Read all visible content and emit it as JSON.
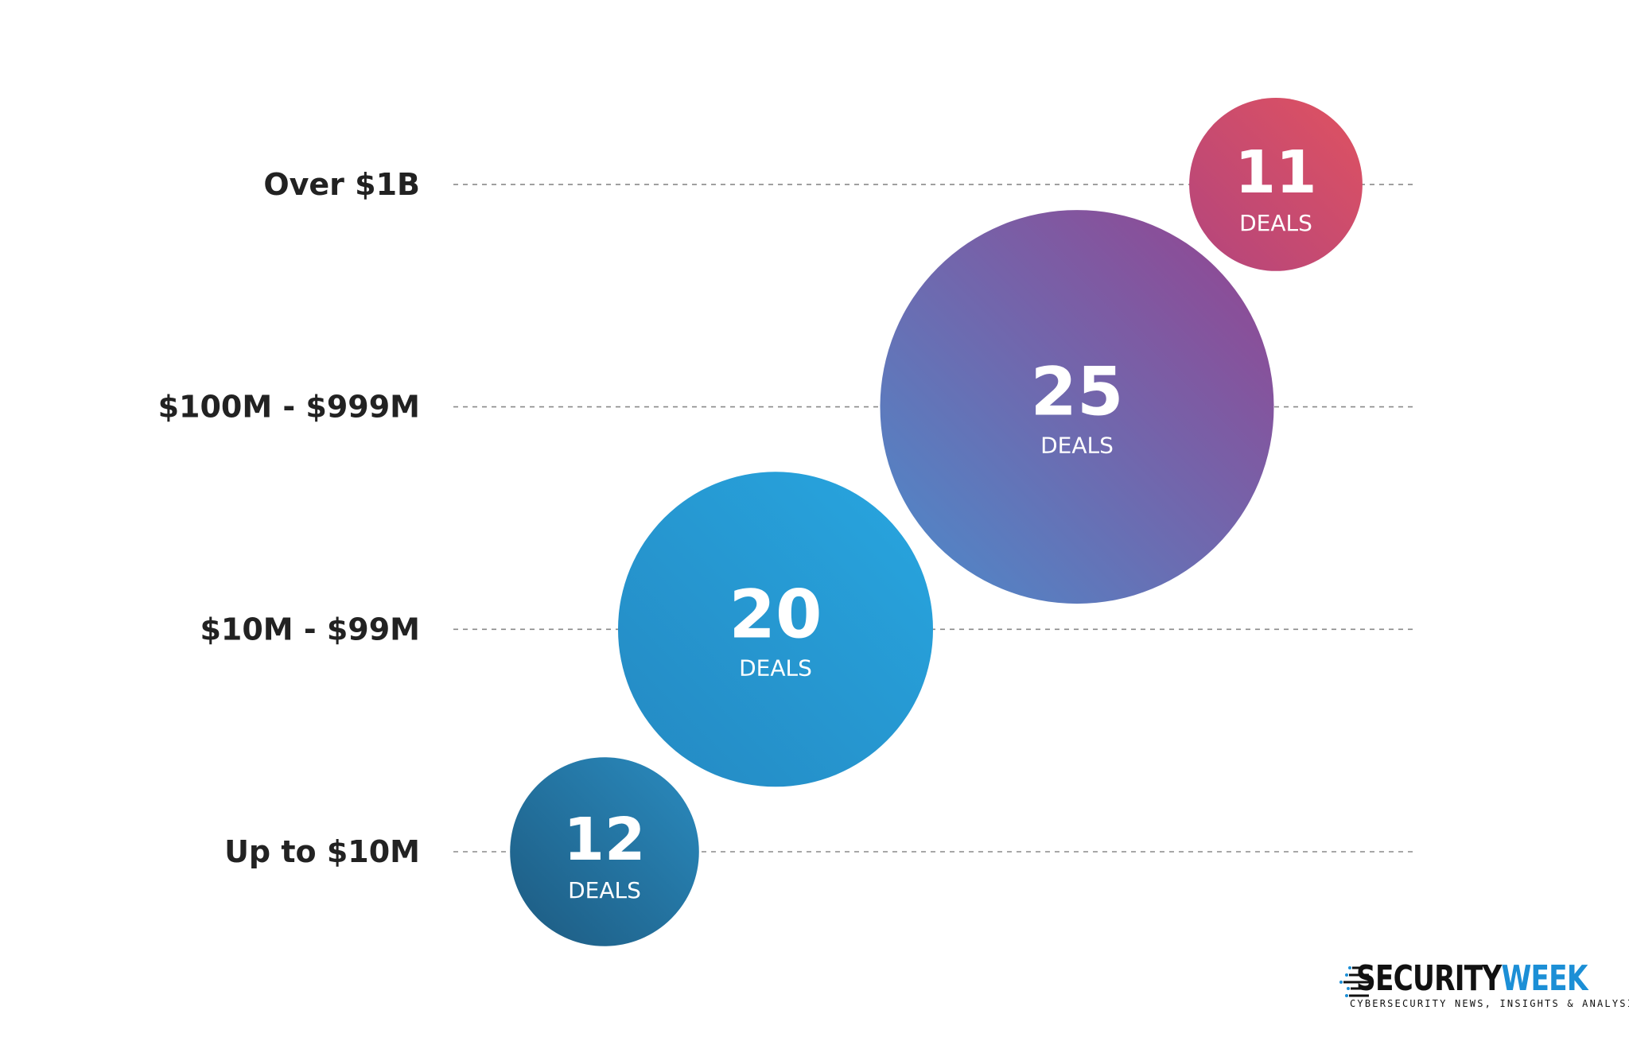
{
  "chart_data": {
    "type": "bubble",
    "categories": [
      "Up to $10M",
      "$10M - $99M",
      "$100M - $999M",
      "Over $1B"
    ],
    "values": [
      12,
      20,
      25,
      11
    ],
    "value_unit_label": "DEALS",
    "grid": "dashed horizontal lines per category",
    "colors": [
      [
        "#1d5a80",
        "#2a8bbf"
      ],
      [
        "#2489c2",
        "#28a6e0"
      ],
      [
        "#4a8ccc",
        "#96438f"
      ],
      [
        "#b3457d",
        "#e05260"
      ]
    ]
  },
  "logo": {
    "brand_part1": "SECURITY",
    "brand_part2": "WEEK",
    "tagline": "CYBERSECURITY NEWS, INSIGHTS & ANALYSIS"
  }
}
